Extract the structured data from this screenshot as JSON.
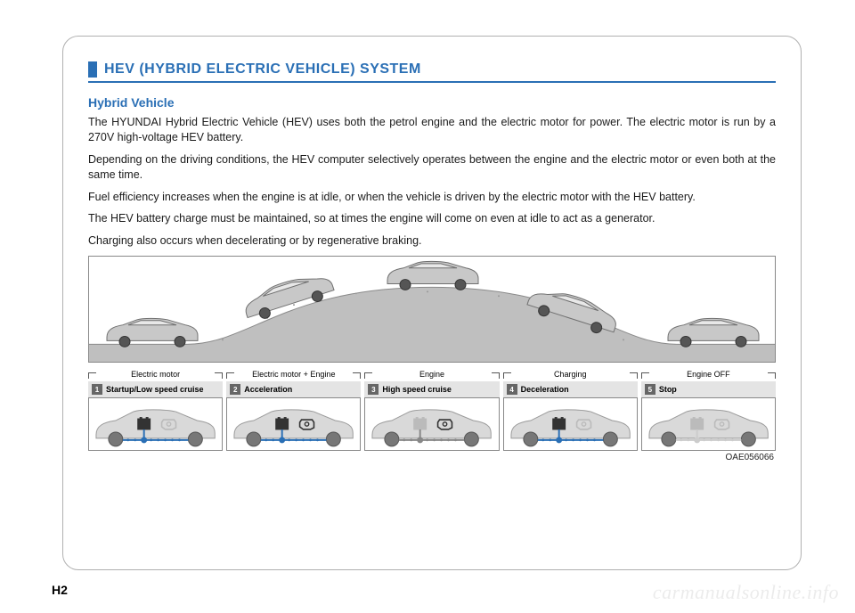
{
  "header": {
    "title": "HEV (HYBRID ELECTRIC VEHICLE) SYSTEM"
  },
  "section": {
    "subtitle": "Hybrid Vehicle",
    "paragraphs": [
      "The HYUNDAI Hybrid Electric Vehicle (HEV) uses both the petrol engine and the electric motor for power. The electric motor is run by a 270V high-voltage HEV battery.",
      "Depending on the driving conditions, the HEV computer selectively operates between the engine and the electric motor or even both at the same time.",
      "Fuel efficiency increases when the engine is at idle, or when the vehicle is driven by the electric motor with the HEV battery.",
      "The HEV battery charge must be maintained, so at times the engine will come on even at idle to act as a generator.",
      "Charging also occurs when decelerating or by regenerative braking."
    ]
  },
  "stages": [
    {
      "num": "1",
      "mode": "Electric motor",
      "label": "Startup/Low speed cruise",
      "battery_active": true,
      "engine_active": false,
      "flow_color": "#2a6fb5"
    },
    {
      "num": "2",
      "mode": "Electric motor + Engine",
      "label": "Acceleration",
      "battery_active": true,
      "engine_active": true,
      "flow_color": "#2a6fb5"
    },
    {
      "num": "3",
      "mode": "Engine",
      "label": "High speed cruise",
      "battery_active": false,
      "engine_active": true,
      "flow_color": "#888888"
    },
    {
      "num": "4",
      "mode": "Charging",
      "label": "Deceleration",
      "battery_active": true,
      "engine_active": false,
      "flow_color": "#2a6fb5"
    },
    {
      "num": "5",
      "mode": "Engine OFF",
      "label": "Stop",
      "battery_active": false,
      "engine_active": false,
      "flow_color": "#cccccc"
    }
  ],
  "image_code": "OAE056066",
  "page_number": "H2",
  "watermark": "carmanualsonline.info",
  "colors": {
    "accent": "#2a6fb5",
    "frame_border": "#b0b0b0",
    "box_border": "#888888",
    "stage_label_bg": "#e4e4e4",
    "stage_num_bg": "#666666",
    "text": "#1a1a1a",
    "car_body": "#c8c8c8",
    "car_stroke": "#6f6f6f",
    "ground_fill": "#bfbfbf"
  }
}
